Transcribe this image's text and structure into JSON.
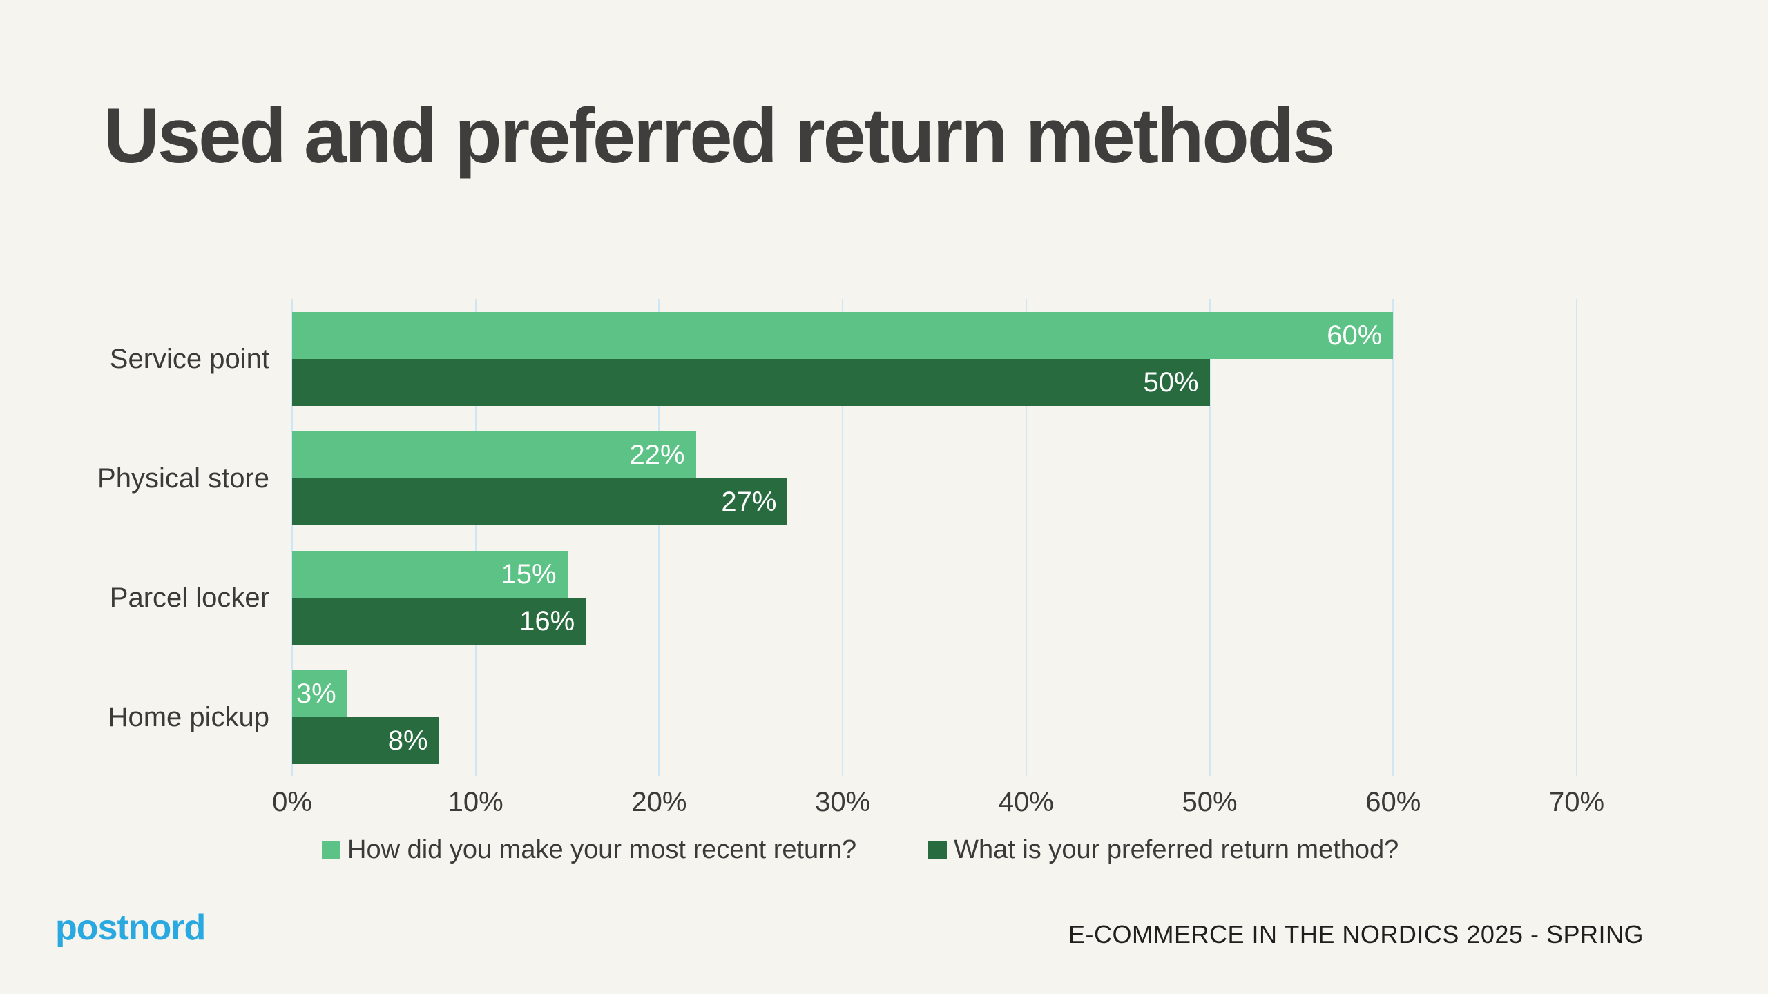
{
  "title": "Used and preferred return methods",
  "chart_data": {
    "type": "bar",
    "orientation": "horizontal",
    "title": "Used and preferred return methods",
    "categories": [
      "Service point",
      "Physical store",
      "Parcel locker",
      "Home pickup"
    ],
    "series": [
      {
        "name": "How did you make your most recent return?",
        "color": "#5CC285",
        "values": [
          60,
          22,
          15,
          3
        ]
      },
      {
        "name": "What is your preferred return method?",
        "color": "#276B3F",
        "values": [
          50,
          27,
          16,
          8
        ]
      }
    ],
    "value_suffix": "%",
    "xlim": [
      0,
      70
    ],
    "x_ticks": [
      "0%",
      "10%",
      "20%",
      "30%",
      "40%",
      "50%",
      "60%",
      "70%"
    ],
    "grid": true,
    "legend_position": "bottom",
    "value_labels": "inside-end"
  },
  "footer": {
    "logo_text": "postnord",
    "report_label": "E-COMMERCE IN THE NORDICS 2025 - SPRING"
  },
  "colors": {
    "background": "#F6F4EF",
    "gridline": "#CFE6F5",
    "title_text": "#3F3E3C",
    "label_text": "#3A3A38",
    "bar_label_text": "#FFFFFF",
    "logo_blue": "#29A9E0",
    "footer_text": "#1F1F1E"
  }
}
